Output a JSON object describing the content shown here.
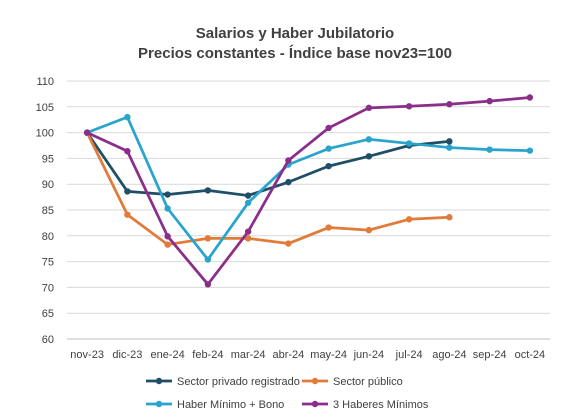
{
  "chart_data": {
    "type": "line",
    "title": "Salarios y Haber Jubilatorio",
    "subtitle": "Precios constantes - Índice base nov23=100",
    "xlabel": "",
    "ylabel": "",
    "categories": [
      "nov-23",
      "dic-23",
      "ene-24",
      "feb-24",
      "mar-24",
      "abr-24",
      "may-24",
      "jun-24",
      "jul-24",
      "ago-24",
      "sep-24",
      "oct-24"
    ],
    "ylim": [
      60,
      110
    ],
    "yticks": [
      60,
      65,
      70,
      75,
      80,
      85,
      90,
      95,
      100,
      105,
      110
    ],
    "grid": true,
    "legend_position": "bottom",
    "series": [
      {
        "name": "Sector privado registrado",
        "color": "#1f4e66",
        "values": [
          100,
          88.6,
          88.0,
          88.8,
          87.8,
          90.4,
          93.5,
          95.4,
          97.5,
          98.3,
          null,
          null
        ]
      },
      {
        "name": "Sector público",
        "color": "#e07b39",
        "values": [
          100,
          84.1,
          78.3,
          79.5,
          79.5,
          78.5,
          81.6,
          81.1,
          83.2,
          83.6,
          null,
          null
        ]
      },
      {
        "name": "Haber Mínimo + Bono",
        "color": "#2aa4cc",
        "values": [
          100,
          103.0,
          85.3,
          75.4,
          86.4,
          93.8,
          96.9,
          98.7,
          97.9,
          97.1,
          96.7,
          96.5
        ]
      },
      {
        "name": "3 Haberes Mínimos",
        "color": "#8b2e8b",
        "values": [
          100,
          96.4,
          79.9,
          70.6,
          80.8,
          94.6,
          100.9,
          104.8,
          105.1,
          105.5,
          106.1,
          106.8
        ]
      }
    ]
  }
}
